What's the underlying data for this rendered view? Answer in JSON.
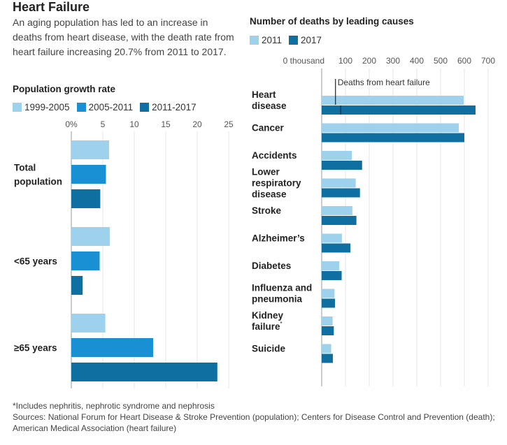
{
  "header": {
    "title": "Heart Failure",
    "subtitle": "An aging population has led to an increase in deaths from heart disease, with the death rate from heart failure increasing 20.7% from 2011 to 2017."
  },
  "colors": {
    "light": "#9dd1ec",
    "mid": "#1a90d4",
    "dark": "#0e6fa0",
    "axis": "#999999",
    "grid": "#e5e5e5"
  },
  "chart_data": [
    {
      "type": "bar",
      "orientation": "horizontal",
      "title": "Population growth rate",
      "categories": [
        "Total population",
        "<65 years",
        "≥65 years"
      ],
      "category_lines": [
        [
          "Total",
          "population"
        ],
        [
          "<65 years"
        ],
        [
          "≥65 years"
        ]
      ],
      "series": [
        {
          "name": "1999-2005",
          "values": [
            6.0,
            6.1,
            5.4
          ]
        },
        {
          "name": "2005-2011",
          "values": [
            5.5,
            4.5,
            13.0
          ]
        },
        {
          "name": "2011-2017",
          "values": [
            4.6,
            1.8,
            23.2
          ]
        }
      ],
      "xlim": [
        0,
        25
      ],
      "ticks": [
        0,
        5,
        10,
        15,
        20,
        25
      ],
      "tick_labels": [
        "0%",
        "5",
        "10",
        "15",
        "20",
        "25"
      ],
      "legend_position": "top"
    },
    {
      "type": "bar",
      "orientation": "horizontal",
      "title": "Number of deaths by leading causes",
      "categories": [
        "Heart disease",
        "Cancer",
        "Accidents",
        "Lower respiratory disease",
        "Stroke",
        "Alzheimer’s",
        "Diabetes",
        "Influenza and pneumonia",
        "Kidney failure",
        "Suicide"
      ],
      "category_lines": [
        [
          "Heart",
          "disease"
        ],
        [
          "Cancer"
        ],
        [
          "Accidents"
        ],
        [
          "Lower",
          "respiratory",
          "disease"
        ],
        [
          "Stroke"
        ],
        [
          "Alzheimer’s"
        ],
        [
          "Diabetes"
        ],
        [
          "Influenza and",
          "pneumonia"
        ],
        [
          "Kidney",
          "failure*"
        ],
        [
          "Suicide"
        ]
      ],
      "category_superscript": {
        "8": "*"
      },
      "series": [
        {
          "name": "2011",
          "values": [
            597,
            577,
            127,
            143,
            129,
            85,
            74,
            54,
            46,
            40
          ]
        },
        {
          "name": "2017",
          "values": [
            647,
            600,
            170,
            161,
            146,
            121,
            84,
            56,
            51,
            47
          ]
        }
      ],
      "xlim": [
        0,
        700
      ],
      "ticks": [
        0,
        100,
        200,
        300,
        400,
        500,
        600,
        700
      ],
      "tick_labels": [
        "0 thousand",
        "100",
        "200",
        "300",
        "400",
        "500",
        "600",
        "700"
      ],
      "annotation": {
        "label": "Deaths from heart failure",
        "values": {
          "2011": 58,
          "2017": 80
        }
      },
      "legend_position": "top"
    }
  ],
  "footnote": {
    "line1": "*Includes nephritis, nephrotic syndrome and nephrosis",
    "line2": "Sources: National Forum for Heart Disease & Stroke Prevention (population); Centers for Disease Control and Prevention (death); American Medical Association (heart failure)"
  }
}
